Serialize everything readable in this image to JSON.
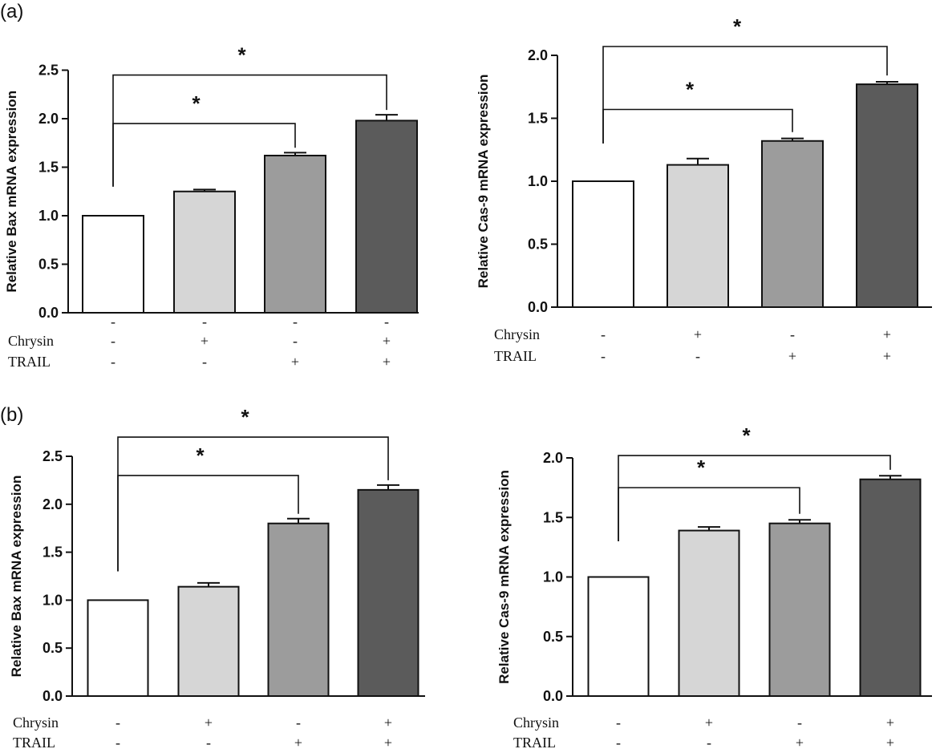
{
  "figure": {
    "panel_labels": [
      "(a)",
      "(b)"
    ]
  },
  "chart_data": [
    {
      "type": "bar",
      "panel": "(a)",
      "ylabel": "Relative Bax mRNA expression",
      "ylim": [
        0,
        2.5
      ],
      "yticks": [
        "0.0",
        "0.5",
        "1.0",
        "1.5",
        "2.0",
        "2.5"
      ],
      "values": [
        1.0,
        1.25,
        1.62,
        1.98
      ],
      "errors": [
        0,
        0.02,
        0.03,
        0.06
      ],
      "colors": [
        "#ffffff",
        "#d6d6d6",
        "#9c9c9c",
        "#5b5b5b"
      ],
      "condition_rows": [
        {
          "name": "",
          "signs": [
            "-",
            "-",
            "-",
            "-"
          ]
        },
        {
          "name": "Chrysin",
          "signs": [
            "-",
            "+",
            "-",
            "+"
          ]
        },
        {
          "name": "TRAIL",
          "signs": [
            "-",
            "-",
            "+",
            "+"
          ]
        }
      ],
      "significance": [
        {
          "from": 0,
          "to": 2,
          "y": 1.95,
          "label": "*"
        },
        {
          "from": 0,
          "to": 3,
          "y": 2.45,
          "label": "*"
        }
      ]
    },
    {
      "type": "bar",
      "panel": "",
      "ylabel": "Relative Cas-9 mRNA expression",
      "ylim": [
        0,
        2.0
      ],
      "yticks": [
        "0.0",
        "0.5",
        "1.0",
        "1.5",
        "2.0"
      ],
      "values": [
        1.0,
        1.13,
        1.32,
        1.77
      ],
      "errors": [
        0,
        0.05,
        0.02,
        0.02
      ],
      "colors": [
        "#ffffff",
        "#d6d6d6",
        "#9c9c9c",
        "#5b5b5b"
      ],
      "condition_rows": [
        {
          "name": "Chrysin",
          "signs": [
            "-",
            "+",
            "-",
            "+"
          ]
        },
        {
          "name": "TRAIL",
          "signs": [
            "-",
            "-",
            "+",
            "+"
          ]
        }
      ],
      "significance": [
        {
          "from": 0,
          "to": 2,
          "y": 1.57,
          "label": "*"
        },
        {
          "from": 0,
          "to": 3,
          "y": 2.07,
          "label": "*"
        }
      ]
    },
    {
      "type": "bar",
      "panel": "(b)",
      "ylabel": "Relative Bax mRNA expression",
      "ylim": [
        0,
        2.5
      ],
      "yticks": [
        "0.0",
        "0.5",
        "1.0",
        "1.5",
        "2.0",
        "2.5"
      ],
      "values": [
        1.0,
        1.14,
        1.8,
        2.15
      ],
      "errors": [
        0,
        0.04,
        0.05,
        0.05
      ],
      "colors": [
        "#ffffff",
        "#d6d6d6",
        "#9c9c9c",
        "#5b5b5b"
      ],
      "condition_rows": [
        {
          "name": "Chrysin",
          "signs": [
            "-",
            "+",
            "-",
            "+"
          ]
        },
        {
          "name": "TRAIL",
          "signs": [
            "-",
            "-",
            "+",
            "+"
          ]
        }
      ],
      "significance": [
        {
          "from": 0,
          "to": 2,
          "y": 2.3,
          "label": "*"
        },
        {
          "from": 0,
          "to": 3,
          "y": 2.7,
          "label": "*"
        }
      ]
    },
    {
      "type": "bar",
      "panel": "",
      "ylabel": "Relative Cas-9 mRNA expression",
      "ylim": [
        0,
        2.0
      ],
      "yticks": [
        "0.0",
        "0.5",
        "1.0",
        "1.5",
        "2.0"
      ],
      "values": [
        1.0,
        1.39,
        1.45,
        1.82
      ],
      "errors": [
        0,
        0.03,
        0.03,
        0.03
      ],
      "colors": [
        "#ffffff",
        "#d6d6d6",
        "#9c9c9c",
        "#5b5b5b"
      ],
      "condition_rows": [
        {
          "name": "Chrysin",
          "signs": [
            "-",
            "+",
            "-",
            "+"
          ]
        },
        {
          "name": "TRAIL",
          "signs": [
            "-",
            "-",
            "+",
            "+"
          ]
        }
      ],
      "significance": [
        {
          "from": 0,
          "to": 2,
          "y": 1.75,
          "label": "*"
        },
        {
          "from": 0,
          "to": 3,
          "y": 2.02,
          "label": "*"
        }
      ]
    }
  ]
}
